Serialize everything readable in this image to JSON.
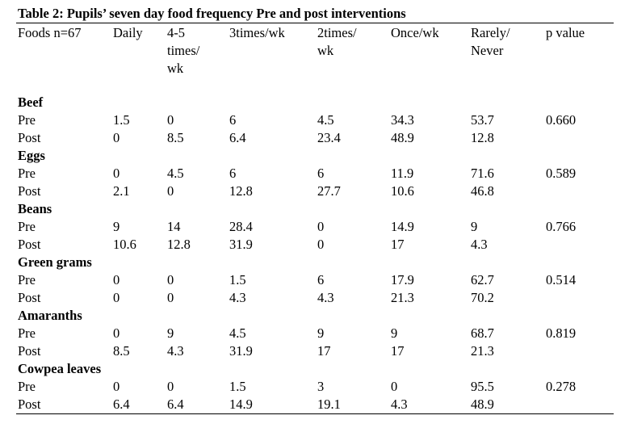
{
  "table": {
    "title": "Table 2: Pupils’ seven day food frequency Pre and  post interventions",
    "headers": [
      "Foods n=67",
      "Daily",
      "4-5\ntimes/\nwk",
      "3times/wk",
      "2times/\nwk",
      "Once/wk",
      "Rarely/\nNever",
      "p value"
    ],
    "groups": [
      {
        "food": "Beef",
        "p_value": "0.660",
        "rows": [
          {
            "label": "Pre",
            "values": [
              "1.5",
              "0",
              "6",
              "4.5",
              "34.3",
              "53.7"
            ]
          },
          {
            "label": "Post",
            "values": [
              "0",
              "8.5",
              "6.4",
              "23.4",
              "48.9",
              "12.8"
            ]
          }
        ]
      },
      {
        "food": "Eggs",
        "p_value": "0.589",
        "rows": [
          {
            "label": "Pre",
            "values": [
              "0",
              "4.5",
              "6",
              "6",
              "11.9",
              "71.6"
            ]
          },
          {
            "label": "Post",
            "values": [
              "2.1",
              "0",
              "12.8",
              "27.7",
              "10.6",
              "46.8"
            ]
          }
        ]
      },
      {
        "food": "Beans",
        "p_value": "0.766",
        "rows": [
          {
            "label": "Pre",
            "values": [
              "9",
              "14",
              "28.4",
              "0",
              "14.9",
              "9"
            ]
          },
          {
            "label": "Post",
            "values": [
              "10.6",
              "12.8",
              "31.9",
              "0",
              "17",
              "4.3"
            ]
          }
        ]
      },
      {
        "food": "Green grams",
        "p_value": "0.514",
        "rows": [
          {
            "label": "Pre",
            "values": [
              "0",
              "0",
              "1.5",
              "6",
              "17.9",
              "62.7"
            ]
          },
          {
            "label": "Post",
            "values": [
              "0",
              "0",
              "4.3",
              "4.3",
              "21.3",
              "70.2"
            ]
          }
        ]
      },
      {
        "food": "Amaranths",
        "p_value": "0.819",
        "rows": [
          {
            "label": "Pre",
            "values": [
              "0",
              "9",
              "4.5",
              "9",
              "9",
              "68.7"
            ]
          },
          {
            "label": "Post",
            "values": [
              "8.5",
              "4.3",
              "31.9",
              "17",
              "17",
              "21.3"
            ]
          }
        ]
      },
      {
        "food": "Cowpea leaves",
        "p_value": "0.278",
        "rows": [
          {
            "label": "Pre",
            "values": [
              "0",
              "0",
              "1.5",
              "3",
              "0",
              "95.5"
            ]
          },
          {
            "label": "Post",
            "values": [
              "6.4",
              "6.4",
              "14.9",
              "19.1",
              "4.3",
              "48.9"
            ]
          }
        ]
      }
    ]
  }
}
